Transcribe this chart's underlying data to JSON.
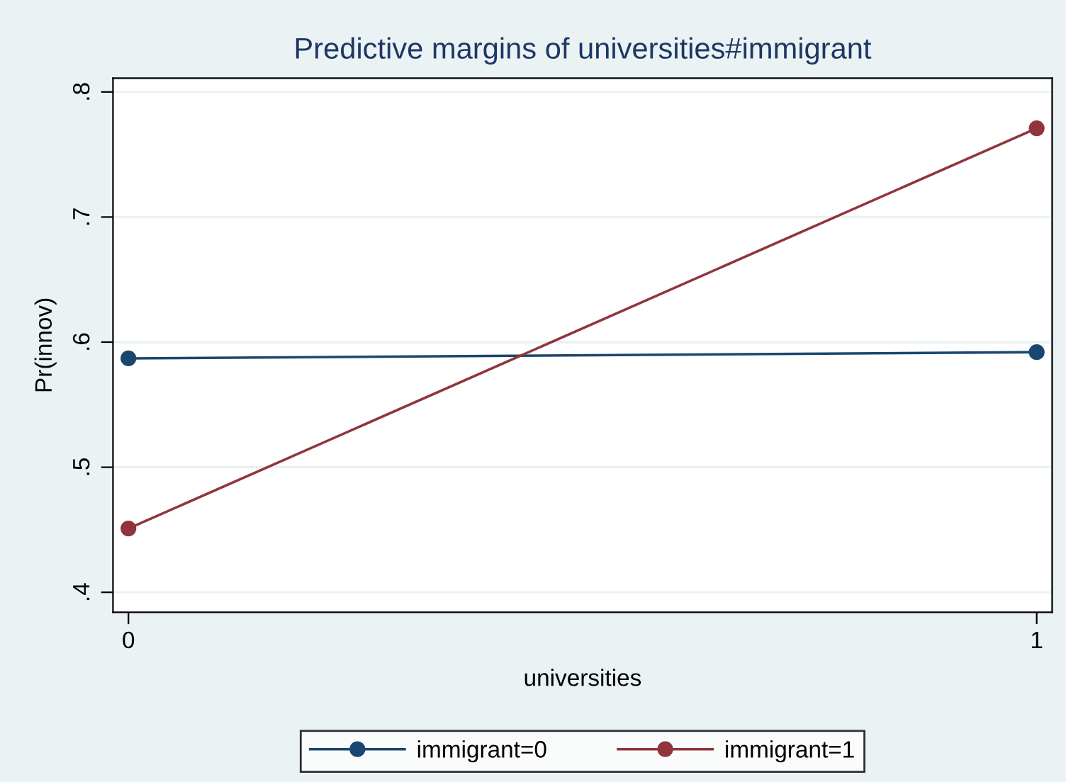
{
  "chart_data": {
    "type": "line",
    "title": "Predictive margins of universities#immigrant",
    "xlabel": "universities",
    "ylabel": "Pr(innov)",
    "x": [
      0,
      1
    ],
    "series": [
      {
        "name": "immigrant=0",
        "color": "#1a476f",
        "values": [
          0.587,
          0.592
        ]
      },
      {
        "name": "immigrant=1",
        "color": "#90353b",
        "values": [
          0.451,
          0.771
        ]
      }
    ],
    "xlim": [
      -0.017,
      1.017
    ],
    "ylim": [
      0.384,
      0.811
    ],
    "xticks": [
      0,
      1
    ],
    "yticks": [
      {
        "value": 0.4,
        "label": ".4"
      },
      {
        "value": 0.5,
        "label": ".5"
      },
      {
        "value": 0.6,
        "label": ".6"
      },
      {
        "value": 0.7,
        "label": ".7"
      },
      {
        "value": 0.8,
        "label": ".8"
      }
    ],
    "grid": "y",
    "legend": "bottom",
    "marker": "circle",
    "line_style": "solid"
  }
}
